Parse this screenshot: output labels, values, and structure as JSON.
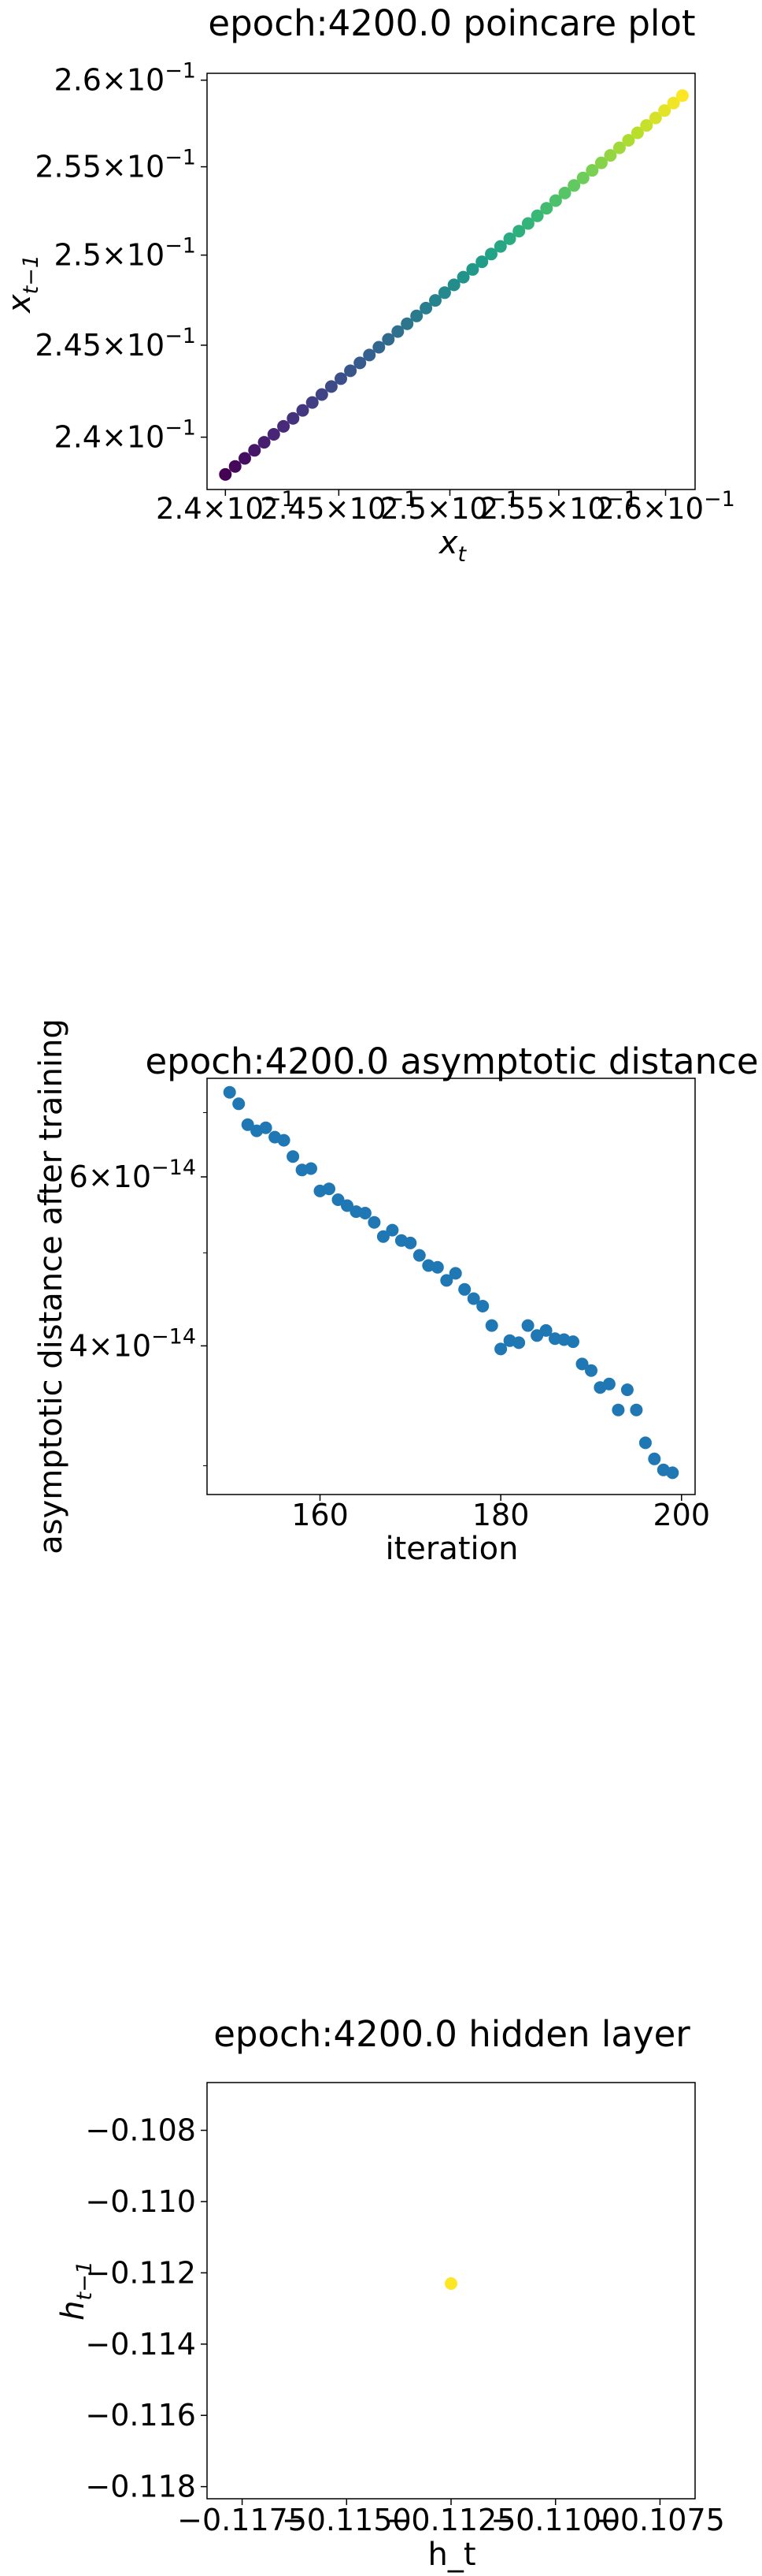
{
  "chart_data": [
    {
      "type": "scatter",
      "title": "epoch:4200.0 poincare plot",
      "xlabel": "x",
      "xlabel_sub": "t",
      "ylabel": "x",
      "ylabel_sub": "t−1",
      "scale": "log",
      "xlim": [
        0.2392,
        0.2614
      ],
      "ylim": [
        0.2372,
        0.2604
      ],
      "xticks": [
        {
          "value": 0.24,
          "mant": "2.4",
          "base": "×10",
          "exp": "−1"
        },
        {
          "value": 0.245,
          "mant": "2.45",
          "base": "×10",
          "exp": "−1"
        },
        {
          "value": 0.25,
          "mant": "2.5",
          "base": "×10",
          "exp": "−1"
        },
        {
          "value": 0.255,
          "mant": "2.55",
          "base": "×10",
          "exp": "−1"
        },
        {
          "value": 0.26,
          "mant": "2.6",
          "base": "×10",
          "exp": "−1"
        }
      ],
      "yticks": [
        {
          "value": 0.24,
          "mant": "2.4",
          "base": "×10",
          "exp": "−1"
        },
        {
          "value": 0.245,
          "mant": "2.45",
          "base": "×10",
          "exp": "−1"
        },
        {
          "value": 0.25,
          "mant": "2.5",
          "base": "×10",
          "exp": "−1"
        },
        {
          "value": 0.255,
          "mant": "2.55",
          "base": "×10",
          "exp": "−1"
        },
        {
          "value": 0.26,
          "mant": "2.6",
          "base": "×10",
          "exp": "−1"
        }
      ],
      "series": [
        {
          "colormap": "viridis",
          "x_start": 0.24,
          "x_end": 0.2608,
          "y_start": 0.238,
          "y_end": 0.2591,
          "count": 50
        }
      ],
      "grid": false,
      "legend": "none"
    },
    {
      "type": "scatter",
      "title": "epoch:4200.0 asymptotic distance",
      "xlabel": "iteration",
      "ylabel": "asymptotic distance after training",
      "scale_y": "log",
      "xlim": [
        147.5,
        201.5
      ],
      "ylim": [
        2.8e-14,
        7.6e-14
      ],
      "xticks": [
        {
          "value": 160,
          "label": "160"
        },
        {
          "value": 180,
          "label": "180"
        },
        {
          "value": 200,
          "label": "200"
        }
      ],
      "yticks": [
        {
          "value": 4e-14,
          "mant": "4",
          "base": "×10",
          "exp": "−14"
        },
        {
          "value": 6e-14,
          "mant": "6",
          "base": "×10",
          "exp": "−14"
        }
      ],
      "color": "#1f77b4",
      "x": [
        150,
        151,
        152,
        153,
        154,
        155,
        156,
        157,
        158,
        159,
        160,
        161,
        162,
        163,
        164,
        165,
        166,
        167,
        168,
        169,
        170,
        171,
        172,
        173,
        174,
        175,
        176,
        177,
        178,
        179,
        180,
        181,
        182,
        183,
        184,
        185,
        186,
        187,
        188,
        189,
        190,
        191,
        192,
        193,
        194,
        195,
        196,
        197,
        198,
        199
      ],
      "y": [
        7.35e-14,
        7.15e-14,
        6.8e-14,
        6.7e-14,
        6.75e-14,
        6.6e-14,
        6.55e-14,
        6.3e-14,
        6.1e-14,
        6.12e-14,
        5.8e-14,
        5.83e-14,
        5.68e-14,
        5.6e-14,
        5.52e-14,
        5.5e-14,
        5.38e-14,
        5.2e-14,
        5.28e-14,
        5.15e-14,
        5.12e-14,
        4.97e-14,
        4.85e-14,
        4.83e-14,
        4.68e-14,
        4.76e-14,
        4.58e-14,
        4.48e-14,
        4.4e-14,
        4.2e-14,
        3.97e-14,
        4.05e-14,
        4.03e-14,
        4.2e-14,
        4.1e-14,
        4.15e-14,
        4.07e-14,
        4.06e-14,
        4.04e-14,
        3.83e-14,
        3.77e-14,
        3.62e-14,
        3.65e-14,
        3.43e-14,
        3.6e-14,
        3.43e-14,
        3.17e-14,
        3.05e-14,
        2.97e-14,
        2.95e-14
      ],
      "grid": false,
      "legend": "none"
    },
    {
      "type": "scatter",
      "title": "epoch:4200.0 hidden layer",
      "xlabel": "h_t",
      "ylabel": "h",
      "ylabel_sub": "t−1",
      "xlim": [
        -0.11834,
        -0.10666
      ],
      "ylim": [
        -0.11834,
        -0.10666
      ],
      "xticks": [
        {
          "value": -0.1175,
          "label": "−0.1175"
        },
        {
          "value": -0.115,
          "label": "−0.1150"
        },
        {
          "value": -0.1125,
          "label": "−0.1125"
        },
        {
          "value": -0.11,
          "label": "−0.1100"
        },
        {
          "value": -0.1075,
          "label": "−0.1075"
        }
      ],
      "yticks": [
        {
          "value": -0.108,
          "label": "−0.108"
        },
        {
          "value": -0.11,
          "label": "−0.110"
        },
        {
          "value": -0.112,
          "label": "−0.112"
        },
        {
          "value": -0.114,
          "label": "−0.114"
        },
        {
          "value": -0.116,
          "label": "−0.116"
        },
        {
          "value": -0.118,
          "label": "−0.118"
        }
      ],
      "x": [
        -0.1125
      ],
      "y": [
        -0.1123
      ],
      "color": "#fde725",
      "grid": false,
      "legend": "none"
    }
  ]
}
